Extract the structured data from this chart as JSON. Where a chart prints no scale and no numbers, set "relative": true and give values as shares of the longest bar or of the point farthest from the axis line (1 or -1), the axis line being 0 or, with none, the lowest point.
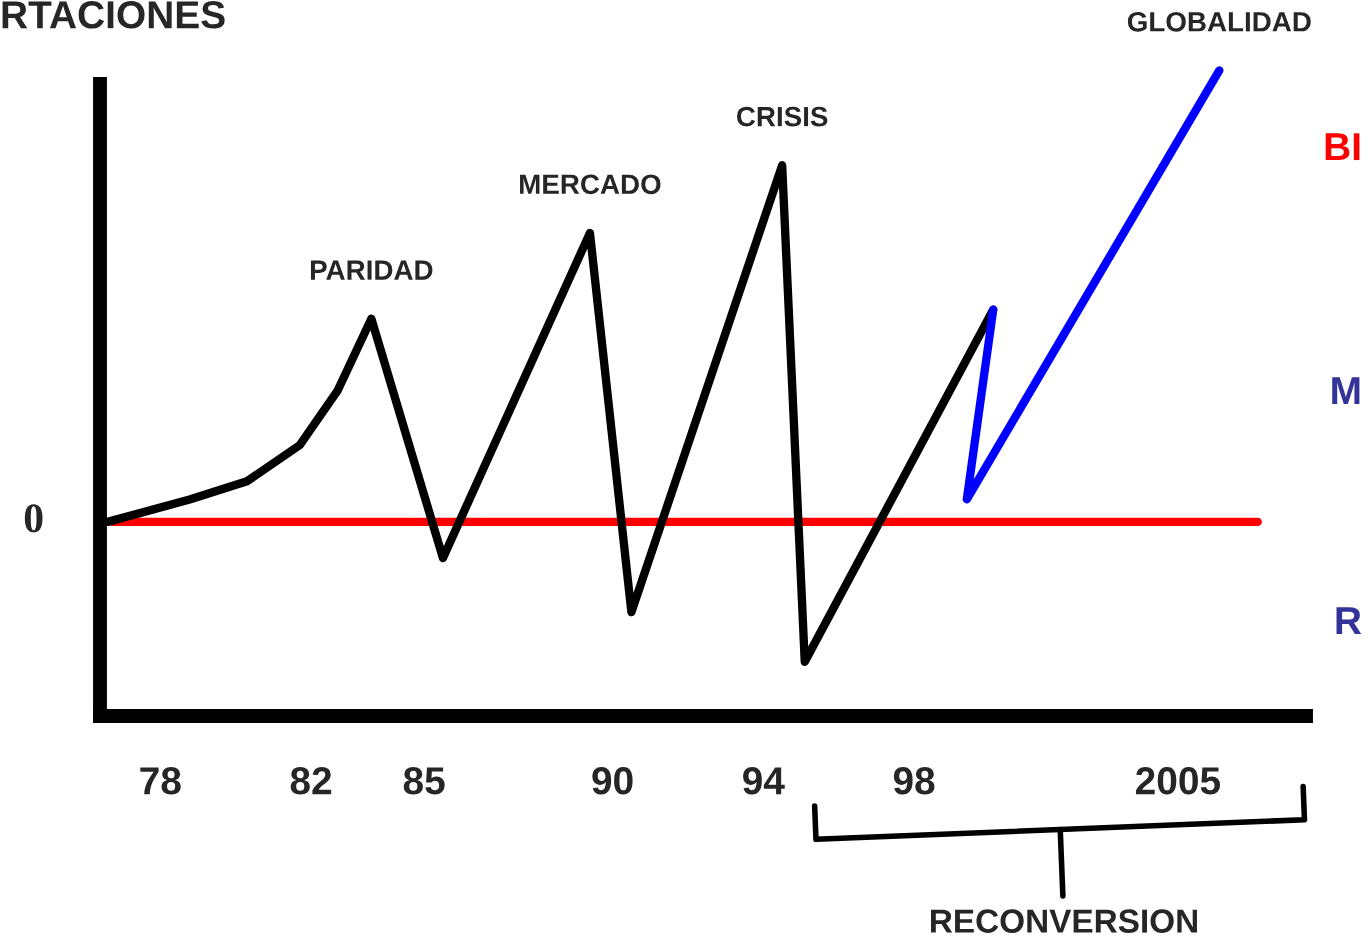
{
  "chart_data": {
    "type": "line",
    "title": "RTACIONES",
    "relative": true,
    "tick_labels": "x",
    "grid": false,
    "legend": false,
    "marker": "none",
    "line_style": "solid",
    "xlim": [
      1976.4,
      2008.4
    ],
    "xticks": [
      {
        "value": 1978,
        "label": "78"
      },
      {
        "value": 1982,
        "label": "82"
      },
      {
        "value": 1985,
        "label": "85"
      },
      {
        "value": 1990,
        "label": "90"
      },
      {
        "value": 1994,
        "label": "94"
      },
      {
        "value": 1998,
        "label": "98"
      },
      2005
    ],
    "series": [
      {
        "color": "#000000",
        "x": [
          1976.6,
          1978.8,
          1980.3,
          1981.7,
          1982.7,
          1983.6,
          1985.5,
          1989.4,
          1990.5,
          1994.5,
          1995.1,
          2000.1
        ],
        "values": [
          0,
          0.05,
          0.09,
          0.17,
          0.29,
          0.45,
          -0.08,
          0.64,
          -0.2,
          0.79,
          -0.31,
          0.47
        ]
      },
      {
        "color": "#0000ff",
        "x": [
          2000.1,
          1999.4,
          2006.1
        ],
        "values": [
          0.47,
          0.05,
          1.0
        ]
      }
    ],
    "ref_lines": [
      {
        "axis": "y",
        "value": 0,
        "label": "0",
        "color": "#ff0000"
      }
    ],
    "annotations": [
      {
        "text": "PARIDAD",
        "x": 1983.6,
        "y": 0.45
      },
      {
        "text": "MERCADO",
        "x": 1989.4,
        "y": 0.64
      },
      {
        "text": "CRISIS",
        "x": 1994.5,
        "y": 0.79
      },
      {
        "text": "GLOBALIDAD",
        "x": 2006.1,
        "y": 1.0
      },
      "RECONVERSION",
      "BI",
      "M",
      "R"
    ]
  }
}
